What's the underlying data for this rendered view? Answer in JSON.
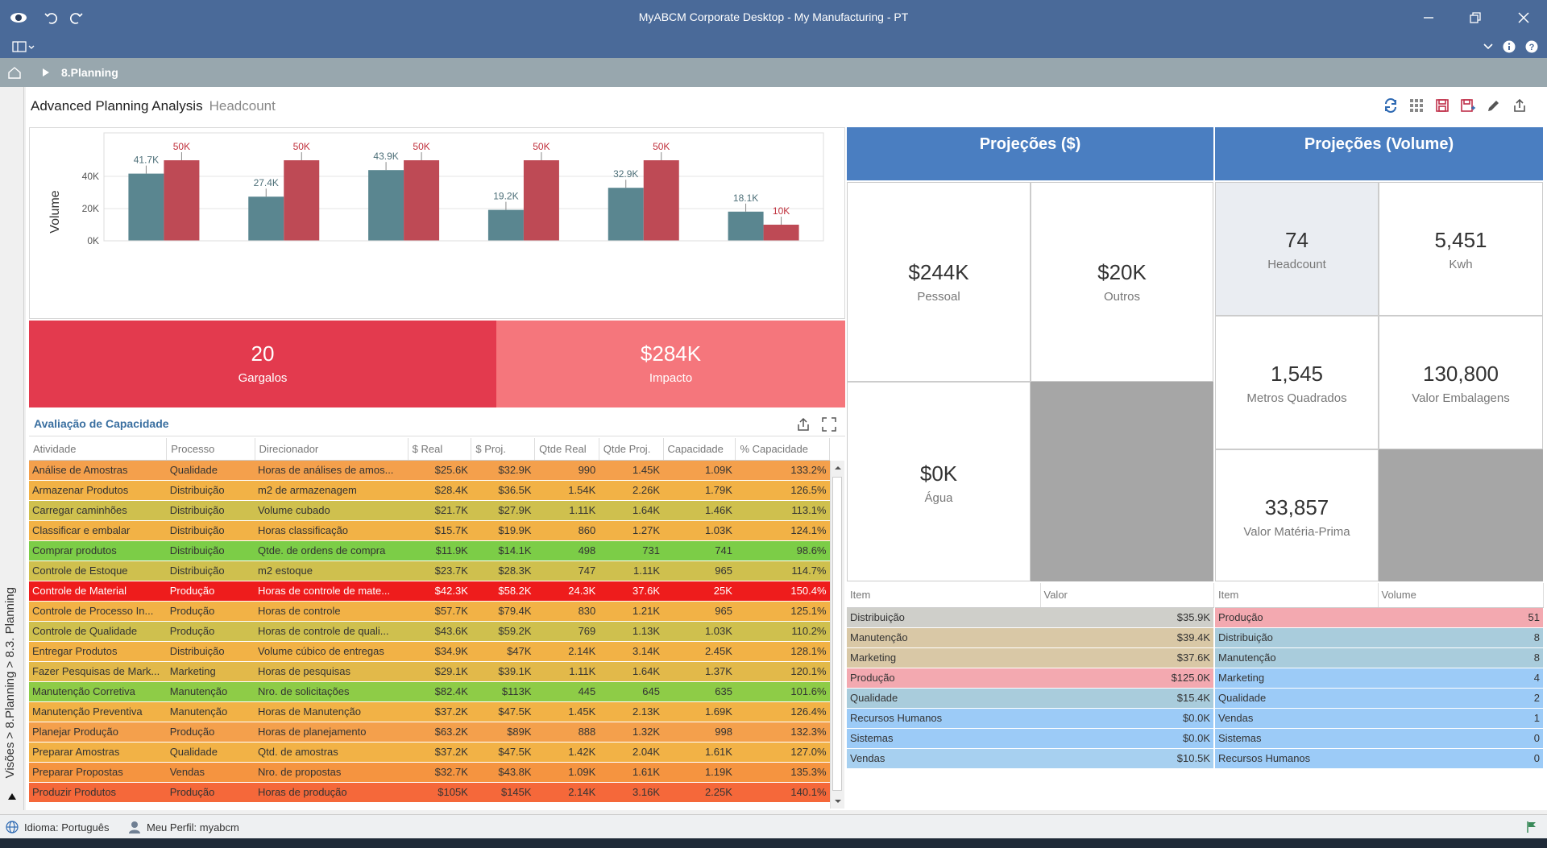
{
  "window": {
    "title": "MyABCM Corporate Desktop - My Manufacturing - PT"
  },
  "breadcrumb": {
    "item": "8.Planning"
  },
  "side_tab": {
    "label": "Visões > 8.Planning > 8.3. Planning"
  },
  "page": {
    "title": "Advanced Planning Analysis",
    "subtitle": "Headcount"
  },
  "chart_data": {
    "type": "bar",
    "ylabel": "Volume",
    "ylim": [
      0,
      60000
    ],
    "yticks": [
      "0K",
      "20K",
      "40K"
    ],
    "ytick_values": [
      0,
      20000,
      40000
    ],
    "series": [
      {
        "values": [
          41700,
          27400,
          43900,
          19200,
          32900,
          18100
        ],
        "labels": [
          "41.7K",
          "27.4K",
          "43.9K",
          "19.2K",
          "32.9K",
          "18.1K"
        ],
        "color": "#5a8690"
      },
      {
        "values": [
          50000,
          50000,
          50000,
          50000,
          50000,
          10000
        ],
        "labels": [
          "50K",
          "50K",
          "50K",
          "50K",
          "50K",
          "10K"
        ],
        "color": "#be4a55"
      }
    ]
  },
  "kpis": {
    "gargalos": {
      "value": "20",
      "label": "Gargalos"
    },
    "impacto": {
      "value": "$284K",
      "label": "Impacto"
    }
  },
  "capacity": {
    "title": "Avaliação de Capacidade",
    "columns": [
      "Atividade",
      "Processo",
      "Direcionador",
      "$ Real",
      "$ Proj.",
      "Qtde Real",
      "Qtde Proj.",
      "Capacidade",
      "% Capacidade"
    ],
    "rows": [
      {
        "c": [
          "Análise de Amostras",
          "Qualidade",
          "Horas de análises de amos...",
          "$25.6K",
          "$32.9K",
          "990",
          "1.45K",
          "1.09K",
          "133.2%"
        ],
        "bg": "#f4a04c"
      },
      {
        "c": [
          "Armazenar Produtos",
          "Distribuição",
          "m2 de armazenagem",
          "$28.4K",
          "$36.5K",
          "1.54K",
          "2.26K",
          "1.79K",
          "126.5%"
        ],
        "bg": "#f2b246"
      },
      {
        "c": [
          "Carregar caminhões",
          "Distribuição",
          "Volume cubado",
          "$21.7K",
          "$27.9K",
          "1.11K",
          "1.64K",
          "1.46K",
          "113.1%"
        ],
        "bg": "#cfc04e"
      },
      {
        "c": [
          "Classificar e embalar",
          "Distribuição",
          "Horas classificação",
          "$15.7K",
          "$19.9K",
          "860",
          "1.27K",
          "1.03K",
          "124.1%"
        ],
        "bg": "#f2b246"
      },
      {
        "c": [
          "Comprar produtos",
          "Distribuição",
          "Qtde. de ordens de compra",
          "$11.9K",
          "$14.1K",
          "498",
          "731",
          "741",
          "98.6%"
        ],
        "bg": "#7ccd47"
      },
      {
        "c": [
          "Controle de Estoque",
          "Distribuição",
          "m2 estoque",
          "$23.7K",
          "$28.3K",
          "747",
          "1.11K",
          "965",
          "114.7%"
        ],
        "bg": "#cfc04e"
      },
      {
        "c": [
          "Controle de Material",
          "Produção",
          "Horas de controle de mate...",
          "$42.3K",
          "$58.2K",
          "24.3K",
          "37.6K",
          "25K",
          "150.4%"
        ],
        "bg": "#ee1c1c",
        "fg": "#ffffff"
      },
      {
        "c": [
          "Controle de Processo In...",
          "Produção",
          "Horas de controle",
          "$57.7K",
          "$79.4K",
          "830",
          "1.21K",
          "965",
          "125.1%"
        ],
        "bg": "#f2b246"
      },
      {
        "c": [
          "Controle de Qualidade",
          "Produção",
          "Horas de controle de quali...",
          "$43.6K",
          "$59.2K",
          "769",
          "1.13K",
          "1.03K",
          "110.2%"
        ],
        "bg": "#cfc04e"
      },
      {
        "c": [
          "Entregar Produtos",
          "Distribuição",
          "Volume cúbico de entregas",
          "$34.9K",
          "$47K",
          "2.14K",
          "3.14K",
          "2.45K",
          "128.1%"
        ],
        "bg": "#f2b246"
      },
      {
        "c": [
          "Fazer Pesquisas de Mark...",
          "Marketing",
          "Horas de pesquisas",
          "$29.1K",
          "$39.1K",
          "1.11K",
          "1.64K",
          "1.37K",
          "120.1%"
        ],
        "bg": "#e2b94a"
      },
      {
        "c": [
          "Manutenção Corretiva",
          "Manutenção",
          "Nro. de solicitações",
          "$82.4K",
          "$113K",
          "445",
          "645",
          "635",
          "101.6%"
        ],
        "bg": "#8ecc47"
      },
      {
        "c": [
          "Manutenção Preventiva",
          "Manutenção",
          "Horas de Manutenção",
          "$37.2K",
          "$47.5K",
          "1.45K",
          "2.13K",
          "1.69K",
          "126.4%"
        ],
        "bg": "#f2b246"
      },
      {
        "c": [
          "Planejar Produção",
          "Produção",
          "Horas de planejamento",
          "$63.2K",
          "$89K",
          "888",
          "1.32K",
          "998",
          "132.3%"
        ],
        "bg": "#f4a04c"
      },
      {
        "c": [
          "Preparar Amostras",
          "Qualidade",
          "Qtd. de amostras",
          "$37.2K",
          "$47.5K",
          "1.42K",
          "2.04K",
          "1.61K",
          "127.0%"
        ],
        "bg": "#f2b246"
      },
      {
        "c": [
          "Preparar Propostas",
          "Vendas",
          "Nro. de propostas",
          "$32.7K",
          "$43.8K",
          "1.09K",
          "1.61K",
          "1.19K",
          "135.3%"
        ],
        "bg": "#f59440"
      },
      {
        "c": [
          "Produzir Produtos",
          "Produção",
          "Horas de produção",
          "$105K",
          "$145K",
          "2.14K",
          "3.16K",
          "2.25K",
          "140.1%"
        ],
        "bg": "#f5683a"
      }
    ]
  },
  "proj_money": {
    "title": "Projeções ($)",
    "tiles": [
      {
        "value": "$244K",
        "label": "Pessoal"
      },
      {
        "value": "$20K",
        "label": "Outros"
      },
      {
        "value": "$0K",
        "label": "Água"
      }
    ],
    "list": {
      "columns": [
        "Item",
        "Valor"
      ],
      "rows": [
        {
          "item": "Distribuição",
          "value": "$35.9K",
          "bg": "#cfcfca"
        },
        {
          "item": "Manutenção",
          "value": "$39.4K",
          "bg": "#d9c8a6"
        },
        {
          "item": "Marketing",
          "value": "$37.6K",
          "bg": "#d9c8a6"
        },
        {
          "item": "Produção",
          "value": "$125.0K",
          "bg": "#f3a9b0"
        },
        {
          "item": "Qualidade",
          "value": "$15.4K",
          "bg": "#a9ccdc"
        },
        {
          "item": "Recursos Humanos",
          "value": "$0.0K",
          "bg": "#9ccbf7"
        },
        {
          "item": "Sistemas",
          "value": "$0.0K",
          "bg": "#9ccbf7"
        },
        {
          "item": "Vendas",
          "value": "$10.5K",
          "bg": "#a7d0f0"
        }
      ]
    }
  },
  "proj_volume": {
    "title": "Projeções (Volume)",
    "tiles": [
      {
        "value": "74",
        "label": "Headcount"
      },
      {
        "value": "5,451",
        "label": "Kwh"
      },
      {
        "value": "1,545",
        "label": "Metros Quadrados"
      },
      {
        "value": "130,800",
        "label": "Valor Embalagens"
      },
      {
        "value": "33,857",
        "label": "Valor Matéria-Prima"
      }
    ],
    "list": {
      "columns": [
        "Item",
        "Volume"
      ],
      "rows": [
        {
          "item": "Produção",
          "value": "51",
          "bg": "#f3a9b0"
        },
        {
          "item": "Distribuição",
          "value": "8",
          "bg": "#a9ccdc"
        },
        {
          "item": "Manutenção",
          "value": "8",
          "bg": "#a9ccdc"
        },
        {
          "item": "Marketing",
          "value": "4",
          "bg": "#9ccbf7"
        },
        {
          "item": "Qualidade",
          "value": "2",
          "bg": "#9ccbf7"
        },
        {
          "item": "Vendas",
          "value": "1",
          "bg": "#9ccbf7"
        },
        {
          "item": "Sistemas",
          "value": "0",
          "bg": "#9ccbf7"
        },
        {
          "item": "Recursos Humanos",
          "value": "0",
          "bg": "#9ccbf7"
        }
      ]
    }
  },
  "status": {
    "language": "Idioma: Português",
    "profile": "Meu Perfil: myabcm"
  }
}
